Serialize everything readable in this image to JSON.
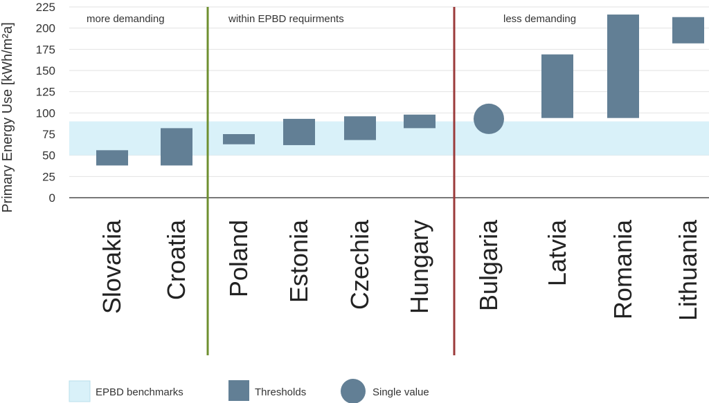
{
  "chart_data": {
    "type": "bar",
    "subtype": "floating-range",
    "ylabel": "Primary Energy Use [kWh/m²a]",
    "ylim": [
      0,
      225
    ],
    "yticks": [
      0,
      25,
      50,
      75,
      100,
      125,
      150,
      175,
      200,
      225
    ],
    "grid": true,
    "categories": [
      "Slovakia",
      "Croatia",
      "Poland",
      "Estonia",
      "Czechia",
      "Hungary",
      "Bulgaria",
      "Latvia",
      "Romania",
      "Lithuania"
    ],
    "series": [
      {
        "name": "Thresholds",
        "ranges": [
          {
            "category": "Slovakia",
            "low": 38,
            "high": 56
          },
          {
            "category": "Croatia",
            "low": 38,
            "high": 82
          },
          {
            "category": "Poland",
            "low": 63,
            "high": 75
          },
          {
            "category": "Estonia",
            "low": 62,
            "high": 93
          },
          {
            "category": "Czechia",
            "low": 68,
            "high": 96
          },
          {
            "category": "Hungary",
            "low": 82,
            "high": 98
          },
          {
            "category": "Latvia",
            "low": 94,
            "high": 169
          },
          {
            "category": "Romania",
            "low": 94,
            "high": 216
          },
          {
            "category": "Lithuania",
            "low": 182,
            "high": 213
          }
        ]
      },
      {
        "name": "Single value",
        "points": [
          {
            "category": "Bulgaria",
            "value": 93
          }
        ]
      }
    ],
    "benchmark_band": {
      "name": "EPBD benchmarks",
      "low": 50,
      "high": 90
    },
    "regions": [
      {
        "label": "more demanding",
        "from_category": "Slovakia",
        "to_category": "Croatia"
      },
      {
        "label": "within EPBD requirments",
        "from_category": "Poland",
        "to_category": "Hungary"
      },
      {
        "label": "less demanding",
        "from_category": "Bulgaria",
        "to_category": "Lithuania"
      }
    ],
    "dividers": [
      {
        "after_category": "Croatia",
        "color": "#6e8f2f"
      },
      {
        "after_category": "Hungary",
        "color": "#9b3a3a"
      }
    ],
    "legend": {
      "position": "bottom-left",
      "items": [
        {
          "label": "EPBD benchmarks",
          "kind": "band"
        },
        {
          "label": "Thresholds",
          "kind": "bar"
        },
        {
          "label": "Single value",
          "kind": "circle"
        }
      ]
    },
    "colors": {
      "bar": "#627f95",
      "band": "#d9f1f9",
      "grid": "#e2e2e2",
      "axis": "#777777"
    }
  }
}
